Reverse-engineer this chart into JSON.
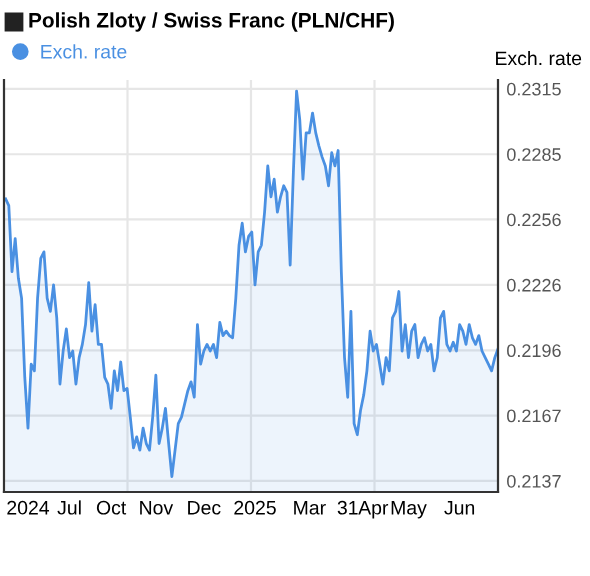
{
  "chart_data": {
    "type": "area",
    "title": "Polish Zloty / Swiss Franc (PLN/CHF)",
    "ylabel": "Exch. rate",
    "categories": [
      null,
      null,
      null,
      null,
      null,
      null,
      null,
      "2024",
      null,
      null,
      null,
      null,
      null,
      null,
      null,
      null,
      null,
      null,
      null,
      null,
      "Jul",
      null,
      null,
      null,
      null,
      null,
      null,
      null,
      null,
      null,
      null,
      null,
      null,
      "Oct",
      null,
      null,
      null,
      null,
      null,
      null,
      null,
      null,
      null,
      null,
      null,
      null,
      null,
      "Nov",
      null,
      null,
      null,
      null,
      null,
      null,
      null,
      null,
      null,
      null,
      null,
      null,
      null,
      null,
      "Dec",
      null,
      null,
      null,
      null,
      null,
      null,
      null,
      null,
      null,
      null,
      null,
      null,
      null,
      null,
      null,
      "2025",
      null,
      null,
      null,
      null,
      null,
      null,
      null,
      null,
      null,
      null,
      null,
      null,
      null,
      null,
      null,
      null,
      "Mar",
      null,
      null,
      null,
      null,
      null,
      null,
      null,
      null,
      null,
      null,
      null,
      "31",
      null,
      null,
      null,
      null,
      null,
      null,
      null,
      "Apr",
      null,
      null,
      null,
      null,
      null,
      null,
      null,
      null,
      null,
      null,
      "May",
      null,
      null,
      null,
      null,
      null,
      null,
      null,
      null,
      null,
      null,
      null,
      null,
      null,
      null,
      null,
      "Jun",
      null,
      null,
      null,
      null,
      null,
      null,
      null,
      null,
      null,
      null,
      null,
      null
    ],
    "series": [
      {
        "name": "Exch. rate",
        "color": "#4a90e2",
        "values": [
          0.2265,
          0.2262,
          0.2232,
          0.2247,
          0.2229,
          0.222,
          0.2184,
          0.2161,
          0.219,
          0.2187,
          0.222,
          0.2238,
          0.2241,
          0.222,
          0.2214,
          0.2226,
          0.2211,
          0.2181,
          0.2196,
          0.2206,
          0.2193,
          0.2196,
          0.2181,
          0.2193,
          0.2199,
          0.2208,
          0.2227,
          0.2205,
          0.2217,
          0.2199,
          0.2199,
          0.2184,
          0.2181,
          0.217,
          0.2187,
          0.2178,
          0.2191,
          0.2178,
          0.2179,
          0.2166,
          0.2152,
          0.2157,
          0.2151,
          0.2161,
          0.2154,
          0.2151,
          0.2166,
          0.2185,
          0.2154,
          0.2161,
          0.217,
          0.2154,
          0.2139,
          0.2151,
          0.2163,
          0.2166,
          0.2172,
          0.2178,
          0.2182,
          0.2175,
          0.2208,
          0.219,
          0.2196,
          0.2199,
          0.2196,
          0.2199,
          0.2193,
          0.2209,
          0.2203,
          0.2205,
          0.2203,
          0.2202,
          0.222,
          0.2244,
          0.2254,
          0.2241,
          0.2248,
          0.225,
          0.2226,
          0.2241,
          0.2244,
          0.2259,
          0.228,
          0.2266,
          0.2274,
          0.2259,
          0.2266,
          0.2271,
          0.2268,
          0.2235,
          0.2277,
          0.2314,
          0.2301,
          0.2274,
          0.2295,
          0.2295,
          0.2304,
          0.2295,
          0.2289,
          0.2284,
          0.228,
          0.2271,
          0.2286,
          0.228,
          0.2287,
          0.2232,
          0.2193,
          0.2175,
          0.2214,
          0.2163,
          0.2158,
          0.2169,
          0.2176,
          0.2187,
          0.2205,
          0.2196,
          0.2199,
          0.219,
          0.2181,
          0.2193,
          0.2187,
          0.2211,
          0.2214,
          0.2223,
          0.2196,
          0.2208,
          0.2193,
          0.2205,
          0.2208,
          0.2193,
          0.2199,
          0.2202,
          0.2196,
          0.2199,
          0.2187,
          0.2193,
          0.2211,
          0.2214,
          0.2199,
          0.2196,
          0.22,
          0.2196,
          0.2208,
          0.2205,
          0.2199,
          0.2208,
          0.2202,
          0.2199,
          0.2203,
          0.2196,
          0.2193,
          0.219,
          0.2187,
          0.2193,
          0.2197
        ]
      }
    ],
    "ylim": [
      0.2132,
      0.2319
    ],
    "yticks": [
      {
        "value": 0.2137,
        "label": "0.2137"
      },
      {
        "value": 0.21667,
        "label": "0.2167"
      },
      {
        "value": 0.21963,
        "label": "0.2196"
      },
      {
        "value": 0.2226,
        "label": "0.2226"
      },
      {
        "value": 0.22557,
        "label": "0.2256"
      },
      {
        "value": 0.22853,
        "label": "0.2285"
      },
      {
        "value": 0.2315,
        "label": "0.2315"
      }
    ],
    "grid": true,
    "legend": "top left"
  }
}
